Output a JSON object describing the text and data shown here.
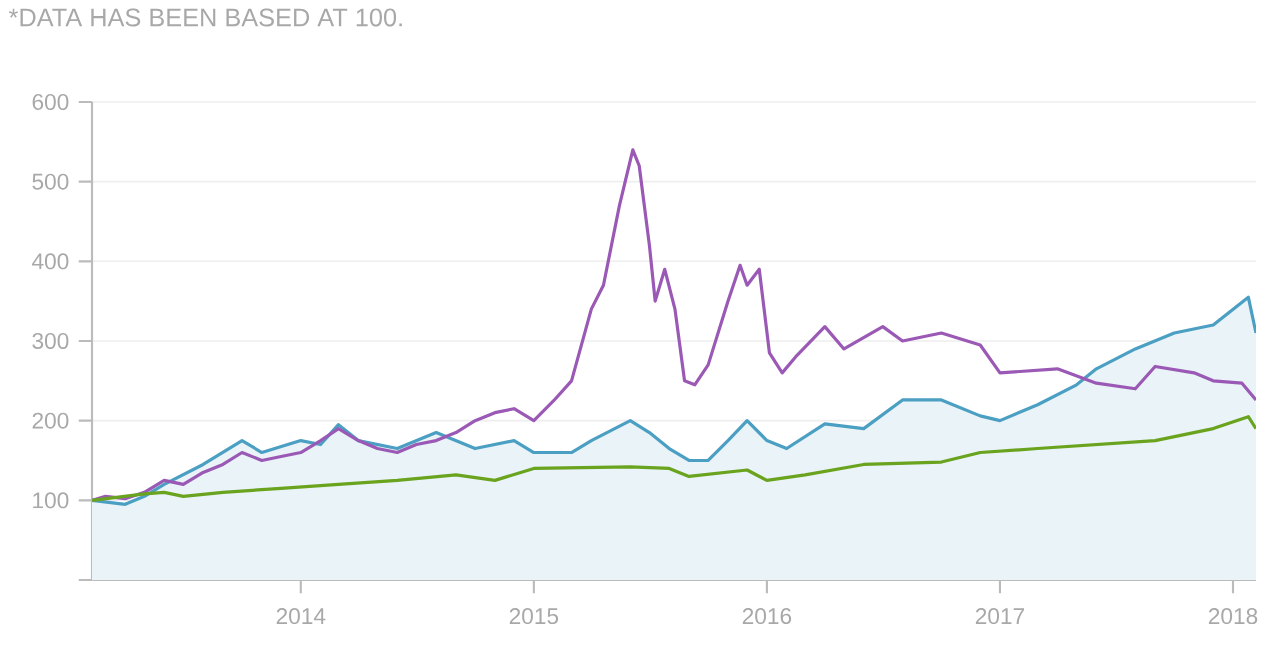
{
  "chart_data": {
    "type": "line",
    "annotations": [
      "*DATA HAS BEEN BASED AT 100."
    ],
    "xlim": [
      "2013-02-08",
      "2018-02-06"
    ],
    "xticks": [
      "2014",
      "2015",
      "2016",
      "2017",
      "2018"
    ],
    "ylim": [
      0,
      600
    ],
    "yticks": [
      {
        "value": 0,
        "label": null
      },
      100,
      200,
      300,
      400,
      500,
      600
    ],
    "grid": "y",
    "series": [
      {
        "type": "area",
        "color": "#4b9fc3",
        "x": [
          "2013-02-08",
          "2013-04-01",
          "2013-05-01",
          "2013-06-01",
          "2013-08-01",
          "2013-10-01",
          "2013-11-01",
          "2014-01-01",
          "2014-02-01",
          "2014-03-01",
          "2014-04-01",
          "2014-06-01",
          "2014-08-01",
          "2014-10-01",
          "2014-12-01",
          "2015-01-01",
          "2015-03-01",
          "2015-04-01",
          "2015-06-01",
          "2015-07-01",
          "2015-08-01",
          "2015-09-01",
          "2015-10-01",
          "2015-11-01",
          "2015-12-01",
          "2016-01-01",
          "2016-02-01",
          "2016-04-01",
          "2016-06-01",
          "2016-08-01",
          "2016-10-01",
          "2016-12-01",
          "2017-01-01",
          "2017-03-01",
          "2017-05-01",
          "2017-06-01",
          "2017-08-01",
          "2017-10-01",
          "2017-12-01",
          "2018-01-25",
          "2018-02-06"
        ],
        "values": [
          100,
          95,
          105,
          120,
          145,
          175,
          160,
          175,
          170,
          195,
          175,
          165,
          185,
          165,
          175,
          160,
          160,
          175,
          200,
          185,
          165,
          150,
          150,
          175,
          200,
          175,
          165,
          196,
          190,
          226,
          226,
          206,
          200,
          220,
          245,
          265,
          290,
          310,
          320,
          355,
          310
        ]
      },
      {
        "color": "#9b59b6",
        "x": [
          "2013-02-08",
          "2013-03-01",
          "2013-04-01",
          "2013-05-01",
          "2013-06-01",
          "2013-07-01",
          "2013-08-01",
          "2013-09-01",
          "2013-10-01",
          "2013-11-01",
          "2013-12-01",
          "2014-01-01",
          "2014-02-01",
          "2014-03-01",
          "2014-04-01",
          "2014-05-01",
          "2014-06-01",
          "2014-07-01",
          "2014-08-01",
          "2014-09-01",
          "2014-10-01",
          "2014-11-01",
          "2014-12-01",
          "2015-01-01",
          "2015-02-01",
          "2015-03-01",
          "2015-04-01",
          "2015-04-20",
          "2015-05-15",
          "2015-06-05",
          "2015-06-15",
          "2015-07-01",
          "2015-07-10",
          "2015-07-25",
          "2015-08-10",
          "2015-08-25",
          "2015-09-10",
          "2015-10-01",
          "2015-11-01",
          "2015-11-20",
          "2015-12-01",
          "2015-12-20",
          "2016-01-05",
          "2016-01-25",
          "2016-02-15",
          "2016-04-01",
          "2016-05-01",
          "2016-07-01",
          "2016-08-01",
          "2016-10-01",
          "2016-12-01",
          "2017-01-01",
          "2017-04-01",
          "2017-06-01",
          "2017-08-01",
          "2017-09-01",
          "2017-11-01",
          "2017-12-01",
          "2018-01-15",
          "2018-02-06"
        ],
        "values": [
          100,
          105,
          102,
          110,
          125,
          120,
          135,
          145,
          160,
          150,
          155,
          160,
          175,
          190,
          175,
          165,
          160,
          170,
          175,
          185,
          200,
          210,
          215,
          200,
          225,
          250,
          340,
          370,
          470,
          540,
          520,
          420,
          350,
          390,
          340,
          250,
          245,
          270,
          350,
          395,
          370,
          390,
          285,
          260,
          280,
          318,
          290,
          318,
          300,
          310,
          295,
          260,
          265,
          247,
          240,
          268,
          260,
          250,
          247,
          226
        ]
      },
      {
        "color": "#6aa31e",
        "x": [
          "2013-02-08",
          "2013-05-01",
          "2013-06-01",
          "2013-07-01",
          "2013-09-01",
          "2013-12-01",
          "2014-03-01",
          "2014-06-01",
          "2014-09-01",
          "2014-11-01",
          "2015-01-01",
          "2015-06-01",
          "2015-08-01",
          "2015-09-01",
          "2015-12-01",
          "2016-01-01",
          "2016-03-01",
          "2016-06-01",
          "2016-10-01",
          "2016-12-01",
          "2017-03-01",
          "2017-06-01",
          "2017-09-01",
          "2017-12-01",
          "2018-01-25",
          "2018-02-06"
        ],
        "values": [
          100,
          108,
          110,
          105,
          110,
          115,
          120,
          125,
          132,
          125,
          140,
          142,
          140,
          130,
          138,
          125,
          132,
          145,
          148,
          160,
          165,
          170,
          175,
          190,
          205,
          190
        ]
      }
    ]
  }
}
